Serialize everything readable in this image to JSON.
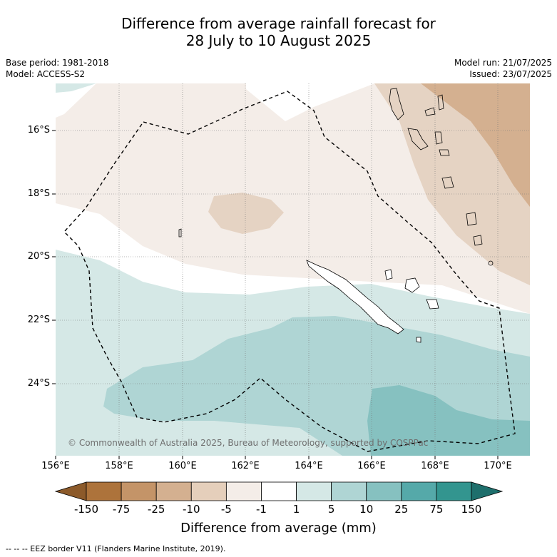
{
  "title_line1": "Difference from average rainfall forecast for",
  "title_line2": "28 July to 10 August 2025",
  "base_period": "Base period: 1981-2018",
  "model": "Model: ACCESS-S2",
  "model_run": "Model run: 21/07/2025",
  "issued": "Issued: 23/07/2025",
  "lat_labels": [
    "16°S",
    "18°S",
    "20°S",
    "22°S",
    "24°S"
  ],
  "lon_labels": [
    "156°E",
    "158°E",
    "160°E",
    "162°E",
    "164°E",
    "166°E",
    "168°E",
    "170°E"
  ],
  "copyright": "© Commonwealth of Australia 2025, Bureau of Meteorology, supported by COSPPac",
  "colorbar": {
    "labels": [
      "-150",
      "-75",
      "-25",
      "-10",
      "-5",
      "-1",
      "1",
      "5",
      "10",
      "25",
      "75",
      "150"
    ],
    "colors": [
      "#8c5a2a",
      "#ad733b",
      "#c49468",
      "#d4b090",
      "#e5cfbb",
      "#f4ede8",
      "#ffffff",
      "#d5e8e6",
      "#afd5d4",
      "#86c1c0",
      "#55a9a9",
      "#33958f",
      "#1e6f6c"
    ],
    "title": "Difference from average (mm)"
  },
  "footer": "--  --  -- EEZ border V11 (Flanders Marine Institute, 2019)."
}
